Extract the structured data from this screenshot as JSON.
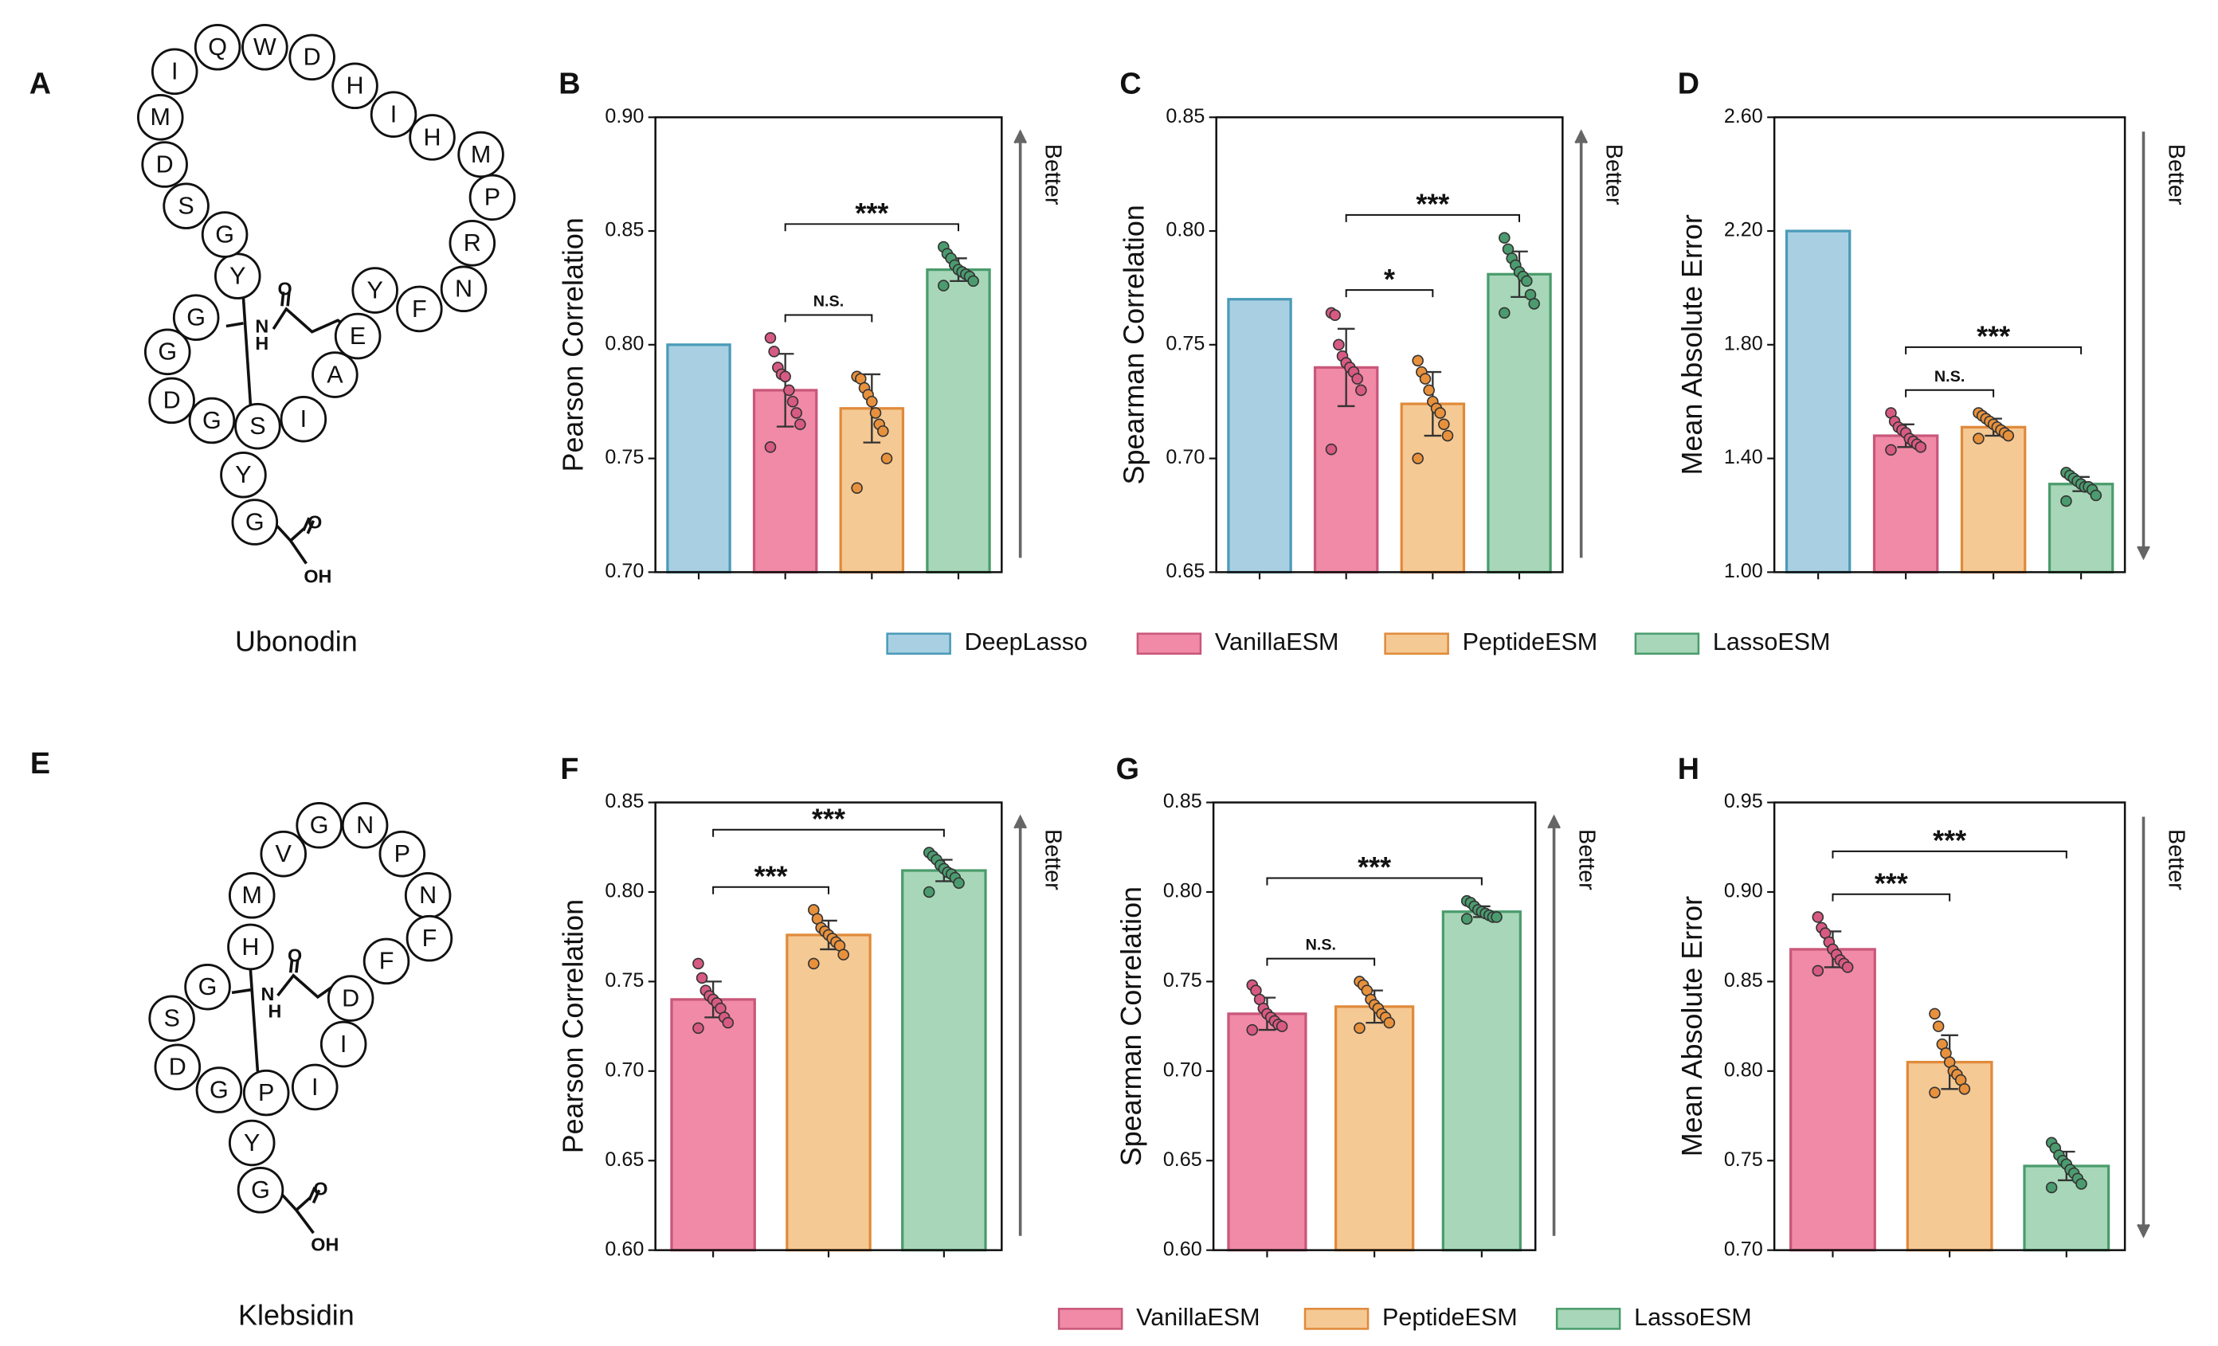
{
  "molecules": [
    {
      "panel": "A",
      "name": "Ubonodin",
      "residues": [
        "G",
        "Y",
        "S",
        "G",
        "D",
        "G",
        "G",
        "Y",
        "G",
        "S",
        "D",
        "M",
        "I",
        "Q",
        "W",
        "D",
        "H",
        "I",
        "H",
        "M",
        "P",
        "R",
        "N",
        "F",
        "Y",
        "E",
        "A",
        "I"
      ],
      "atoms": [
        "N",
        "H",
        "O",
        "O",
        "OH"
      ]
    },
    {
      "panel": "E",
      "name": "Klebsidin",
      "residues": [
        "G",
        "Y",
        "P",
        "G",
        "D",
        "S",
        "G",
        "H",
        "M",
        "V",
        "G",
        "N",
        "P",
        "N",
        "F",
        "F",
        "D",
        "I",
        "I"
      ],
      "atoms": [
        "N",
        "H",
        "O",
        "O",
        "OH"
      ]
    }
  ],
  "chart_data": [
    {
      "type": "bar",
      "panel": "B",
      "ylabel": "Pearson Correlation",
      "direction_label": "Better",
      "better": "up",
      "ylim": [
        0.7,
        0.9
      ],
      "yticks": [
        {
          "value": 0.7,
          "label": "0.70"
        },
        0.75,
        {
          "value": 0.8,
          "label": "0.80"
        },
        0.85,
        {
          "value": 0.9,
          "label": "0.90"
        }
      ],
      "series": [
        {
          "name": "DeepLasso",
          "color": "#a9d0e2",
          "edge_color": "#4a9bb8",
          "values": [
            0.8
          ]
        },
        {
          "name": "VanillaESM",
          "color": "#f08aa6",
          "edge_color": "#c9577a",
          "point_color": "#d75a82",
          "values": [
            0.78
          ],
          "errors": [
            0.016
          ],
          "points": [
            0.803,
            0.797,
            0.79,
            0.787,
            0.786,
            0.78,
            0.775,
            0.77,
            0.765,
            0.755
          ]
        },
        {
          "name": "PeptideESM",
          "color": "#f5c994",
          "edge_color": "#e08a3a",
          "point_color": "#e8913d",
          "values": [
            0.772
          ],
          "errors": [
            0.015
          ],
          "points": [
            0.786,
            0.785,
            0.781,
            0.778,
            0.775,
            0.77,
            0.765,
            0.762,
            0.75,
            0.737
          ]
        },
        {
          "name": "LassoESM",
          "color": "#a7d7b8",
          "edge_color": "#4a9c6c",
          "point_color": "#4b9b6f",
          "values": [
            0.833
          ],
          "errors": [
            0.005
          ],
          "points": [
            0.843,
            0.84,
            0.838,
            0.835,
            0.833,
            0.832,
            0.831,
            0.83,
            0.828,
            0.826
          ]
        }
      ],
      "annotations": [
        {
          "pair": [
            1,
            2
          ],
          "label": "N.S."
        },
        {
          "pair": [
            1,
            3
          ],
          "label": "***"
        }
      ]
    },
    {
      "type": "bar",
      "panel": "C",
      "ylabel": "Spearman Correlation",
      "direction_label": "Better",
      "better": "up",
      "ylim": [
        0.65,
        0.85
      ],
      "yticks": [
        0.65,
        {
          "value": 0.7,
          "label": "0.70"
        },
        0.75,
        {
          "value": 0.8,
          "label": "0.80"
        },
        0.85
      ],
      "series": [
        {
          "name": "DeepLasso",
          "color": "#a9d0e2",
          "edge_color": "#4a9bb8",
          "values": [
            0.77
          ]
        },
        {
          "name": "VanillaESM",
          "color": "#f08aa6",
          "edge_color": "#c9577a",
          "point_color": "#d75a82",
          "values": [
            0.74
          ],
          "errors": [
            0.017
          ],
          "points": [
            0.764,
            0.763,
            0.75,
            0.745,
            0.742,
            0.74,
            0.738,
            0.735,
            0.73,
            0.704
          ]
        },
        {
          "name": "PeptideESM",
          "color": "#f5c994",
          "edge_color": "#e08a3a",
          "point_color": "#e8913d",
          "values": [
            0.724
          ],
          "errors": [
            0.014
          ],
          "points": [
            0.743,
            0.738,
            0.735,
            0.73,
            0.725,
            0.722,
            0.72,
            0.715,
            0.71,
            0.7
          ]
        },
        {
          "name": "LassoESM",
          "color": "#a7d7b8",
          "edge_color": "#4a9c6c",
          "point_color": "#4b9b6f",
          "values": [
            0.781
          ],
          "errors": [
            0.01
          ],
          "points": [
            0.797,
            0.792,
            0.788,
            0.785,
            0.782,
            0.78,
            0.778,
            0.772,
            0.768,
            0.764
          ]
        }
      ],
      "annotations": [
        {
          "pair": [
            1,
            2
          ],
          "label": "*"
        },
        {
          "pair": [
            1,
            3
          ],
          "label": "***"
        }
      ]
    },
    {
      "type": "bar",
      "panel": "D",
      "ylabel": "Mean Absolute Error",
      "direction_label": "Better",
      "better": "down",
      "ylim": [
        1.0,
        2.6
      ],
      "yticks": [
        {
          "value": 1.0,
          "label": "1.00"
        },
        {
          "value": 1.4,
          "label": "1.40"
        },
        {
          "value": 1.8,
          "label": "1.80"
        },
        {
          "value": 2.2,
          "label": "2.20"
        },
        {
          "value": 2.6,
          "label": "2.60"
        }
      ],
      "series": [
        {
          "name": "DeepLasso",
          "color": "#a9d0e2",
          "edge_color": "#4a9bb8",
          "values": [
            2.2
          ]
        },
        {
          "name": "VanillaESM",
          "color": "#f08aa6",
          "edge_color": "#c9577a",
          "point_color": "#d75a82",
          "values": [
            1.48
          ],
          "errors": [
            0.04
          ],
          "points": [
            1.56,
            1.53,
            1.51,
            1.5,
            1.49,
            1.47,
            1.46,
            1.45,
            1.44,
            1.43
          ]
        },
        {
          "name": "PeptideESM",
          "color": "#f5c994",
          "edge_color": "#e08a3a",
          "point_color": "#e8913d",
          "values": [
            1.51
          ],
          "errors": [
            0.03
          ],
          "points": [
            1.56,
            1.55,
            1.54,
            1.53,
            1.52,
            1.51,
            1.5,
            1.49,
            1.48,
            1.47
          ]
        },
        {
          "name": "LassoESM",
          "color": "#a7d7b8",
          "edge_color": "#4a9c6c",
          "point_color": "#4b9b6f",
          "values": [
            1.31
          ],
          "errors": [
            0.025
          ],
          "points": [
            1.35,
            1.34,
            1.33,
            1.32,
            1.31,
            1.3,
            1.3,
            1.29,
            1.27,
            1.25
          ]
        }
      ],
      "annotations": [
        {
          "pair": [
            1,
            2
          ],
          "label": "N.S."
        },
        {
          "pair": [
            1,
            3
          ],
          "label": "***"
        }
      ]
    },
    {
      "type": "bar",
      "panel": "F",
      "ylabel": "Pearson Correlation",
      "direction_label": "Better",
      "better": "up",
      "ylim": [
        0.6,
        0.85
      ],
      "yticks": [
        {
          "value": 0.6,
          "label": "0.60"
        },
        0.65,
        {
          "value": 0.7,
          "label": "0.70"
        },
        0.75,
        {
          "value": 0.8,
          "label": "0.80"
        },
        0.85
      ],
      "series": [
        {
          "name": "VanillaESM",
          "color": "#f08aa6",
          "edge_color": "#c9577a",
          "point_color": "#d75a82",
          "values": [
            0.74
          ],
          "errors": [
            0.01
          ],
          "points": [
            0.76,
            0.752,
            0.745,
            0.742,
            0.74,
            0.738,
            0.735,
            0.73,
            0.727,
            0.724
          ]
        },
        {
          "name": "PeptideESM",
          "color": "#f5c994",
          "edge_color": "#e08a3a",
          "point_color": "#e8913d",
          "values": [
            0.776
          ],
          "errors": [
            0.008
          ],
          "points": [
            0.79,
            0.785,
            0.78,
            0.778,
            0.776,
            0.774,
            0.772,
            0.77,
            0.765,
            0.76
          ]
        },
        {
          "name": "LassoESM",
          "color": "#a7d7b8",
          "edge_color": "#4a9c6c",
          "point_color": "#4b9b6f",
          "values": [
            0.812
          ],
          "errors": [
            0.006
          ],
          "points": [
            0.822,
            0.82,
            0.818,
            0.815,
            0.813,
            0.811,
            0.81,
            0.808,
            0.805,
            0.8
          ]
        }
      ],
      "annotations": [
        {
          "pair": [
            0,
            1
          ],
          "label": "***"
        },
        {
          "pair": [
            0,
            2
          ],
          "label": "***"
        }
      ]
    },
    {
      "type": "bar",
      "panel": "G",
      "ylabel": "Spearman Correlation",
      "direction_label": "Better",
      "better": "up",
      "ylim": [
        0.6,
        0.85
      ],
      "yticks": [
        {
          "value": 0.6,
          "label": "0.60"
        },
        0.65,
        {
          "value": 0.7,
          "label": "0.70"
        },
        0.75,
        {
          "value": 0.8,
          "label": "0.80"
        },
        0.85
      ],
      "series": [
        {
          "name": "VanillaESM",
          "color": "#f08aa6",
          "edge_color": "#c9577a",
          "point_color": "#d75a82",
          "values": [
            0.732
          ],
          "errors": [
            0.009
          ],
          "points": [
            0.748,
            0.745,
            0.74,
            0.735,
            0.732,
            0.73,
            0.728,
            0.726,
            0.725,
            0.723
          ]
        },
        {
          "name": "PeptideESM",
          "color": "#f5c994",
          "edge_color": "#e08a3a",
          "point_color": "#e8913d",
          "values": [
            0.736
          ],
          "errors": [
            0.009
          ],
          "points": [
            0.75,
            0.748,
            0.745,
            0.74,
            0.737,
            0.735,
            0.732,
            0.73,
            0.727,
            0.724
          ]
        },
        {
          "name": "LassoESM",
          "color": "#a7d7b8",
          "edge_color": "#4a9c6c",
          "point_color": "#4b9b6f",
          "values": [
            0.789
          ],
          "errors": [
            0.003
          ],
          "points": [
            0.795,
            0.794,
            0.792,
            0.79,
            0.789,
            0.788,
            0.787,
            0.786,
            0.786,
            0.785
          ]
        }
      ],
      "annotations": [
        {
          "pair": [
            0,
            1
          ],
          "label": "N.S."
        },
        {
          "pair": [
            0,
            2
          ],
          "label": "***"
        }
      ]
    },
    {
      "type": "bar",
      "panel": "H",
      "ylabel": "Mean Absolute Error",
      "direction_label": "Better",
      "better": "down",
      "ylim": [
        0.7,
        0.95
      ],
      "yticks": [
        {
          "value": 0.7,
          "label": "0.70"
        },
        0.75,
        {
          "value": 0.8,
          "label": "0.80"
        },
        0.85,
        {
          "value": 0.9,
          "label": "0.90"
        },
        0.95
      ],
      "series": [
        {
          "name": "VanillaESM",
          "color": "#f08aa6",
          "edge_color": "#c9577a",
          "point_color": "#d75a82",
          "values": [
            0.868
          ],
          "errors": [
            0.01
          ],
          "points": [
            0.886,
            0.88,
            0.877,
            0.872,
            0.868,
            0.865,
            0.862,
            0.86,
            0.858,
            0.856
          ]
        },
        {
          "name": "PeptideESM",
          "color": "#f5c994",
          "edge_color": "#e08a3a",
          "point_color": "#e8913d",
          "values": [
            0.805
          ],
          "errors": [
            0.015
          ],
          "points": [
            0.832,
            0.825,
            0.815,
            0.81,
            0.805,
            0.8,
            0.798,
            0.795,
            0.79,
            0.788
          ]
        },
        {
          "name": "LassoESM",
          "color": "#a7d7b8",
          "edge_color": "#4a9c6c",
          "point_color": "#4b9b6f",
          "values": [
            0.747
          ],
          "errors": [
            0.008
          ],
          "points": [
            0.76,
            0.757,
            0.753,
            0.75,
            0.748,
            0.745,
            0.743,
            0.74,
            0.737,
            0.735
          ]
        }
      ],
      "annotations": [
        {
          "pair": [
            0,
            1
          ],
          "label": "***"
        },
        {
          "pair": [
            0,
            2
          ],
          "label": "***"
        }
      ]
    }
  ]
}
